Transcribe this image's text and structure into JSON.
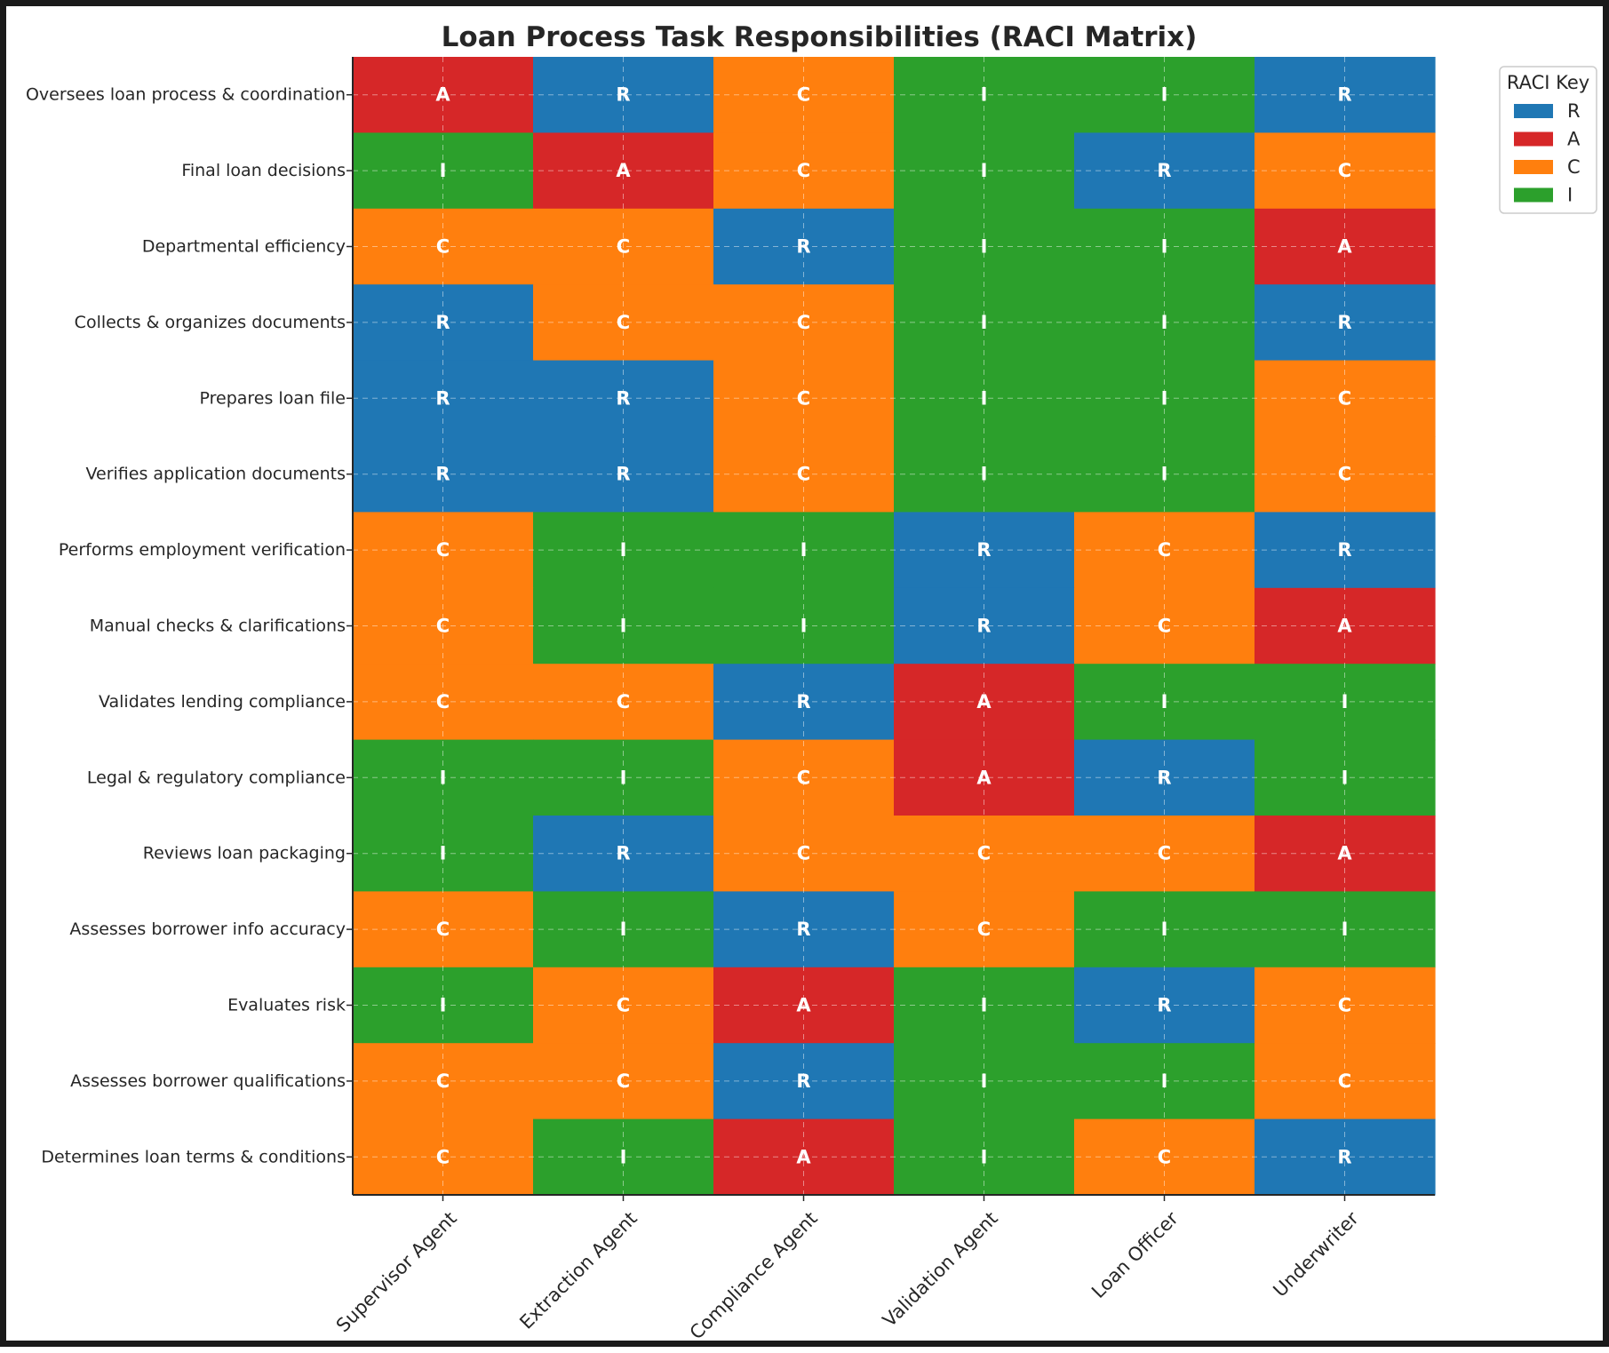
{
  "chart_data": {
    "type": "heatmap",
    "title": "Loan Process Task Responsibilities (RACI Matrix)",
    "xlabel": "",
    "ylabel": "",
    "columns": [
      "Supervisor Agent",
      "Extraction Agent",
      "Compliance Agent",
      "Validation Agent",
      "Loan Officer",
      "Underwriter"
    ],
    "rows": [
      "Oversees loan process & coordination",
      "Final loan decisions",
      "Departmental efficiency",
      "Collects & organizes documents",
      "Prepares loan file",
      "Verifies application documents",
      "Performs employment verification",
      "Manual checks & clarifications",
      "Validates lending compliance",
      "Legal & regulatory compliance",
      "Reviews loan packaging",
      "Assesses borrower info accuracy",
      "Evaluates risk",
      "Assesses borrower qualifications",
      "Determines loan terms & conditions"
    ],
    "values": [
      [
        "A",
        "R",
        "C",
        "I",
        "I",
        "R"
      ],
      [
        "I",
        "A",
        "C",
        "I",
        "R",
        "C"
      ],
      [
        "C",
        "C",
        "R",
        "I",
        "I",
        "A"
      ],
      [
        "R",
        "C",
        "C",
        "I",
        "I",
        "R"
      ],
      [
        "R",
        "R",
        "C",
        "I",
        "I",
        "C"
      ],
      [
        "R",
        "R",
        "C",
        "I",
        "I",
        "C"
      ],
      [
        "C",
        "I",
        "I",
        "R",
        "C",
        "R"
      ],
      [
        "C",
        "I",
        "I",
        "R",
        "C",
        "A"
      ],
      [
        "C",
        "C",
        "R",
        "A",
        "I",
        "I"
      ],
      [
        "I",
        "I",
        "C",
        "A",
        "R",
        "I"
      ],
      [
        "I",
        "R",
        "C",
        "C",
        "C",
        "A"
      ],
      [
        "C",
        "I",
        "R",
        "C",
        "I",
        "I"
      ],
      [
        "I",
        "C",
        "A",
        "I",
        "R",
        "C"
      ],
      [
        "C",
        "C",
        "R",
        "I",
        "I",
        "C"
      ],
      [
        "C",
        "I",
        "A",
        "I",
        "C",
        "R"
      ]
    ],
    "legend": {
      "title": "RACI Key",
      "placement": "upper-right-outside",
      "entries": [
        {
          "label": "R",
          "color": "#1f77b4"
        },
        {
          "label": "A",
          "color": "#d62728"
        },
        {
          "label": "C",
          "color": "#ff7f0e"
        },
        {
          "label": "I",
          "color": "#2ca02c"
        }
      ]
    },
    "grid": true,
    "xtick_rotation": 45
  }
}
